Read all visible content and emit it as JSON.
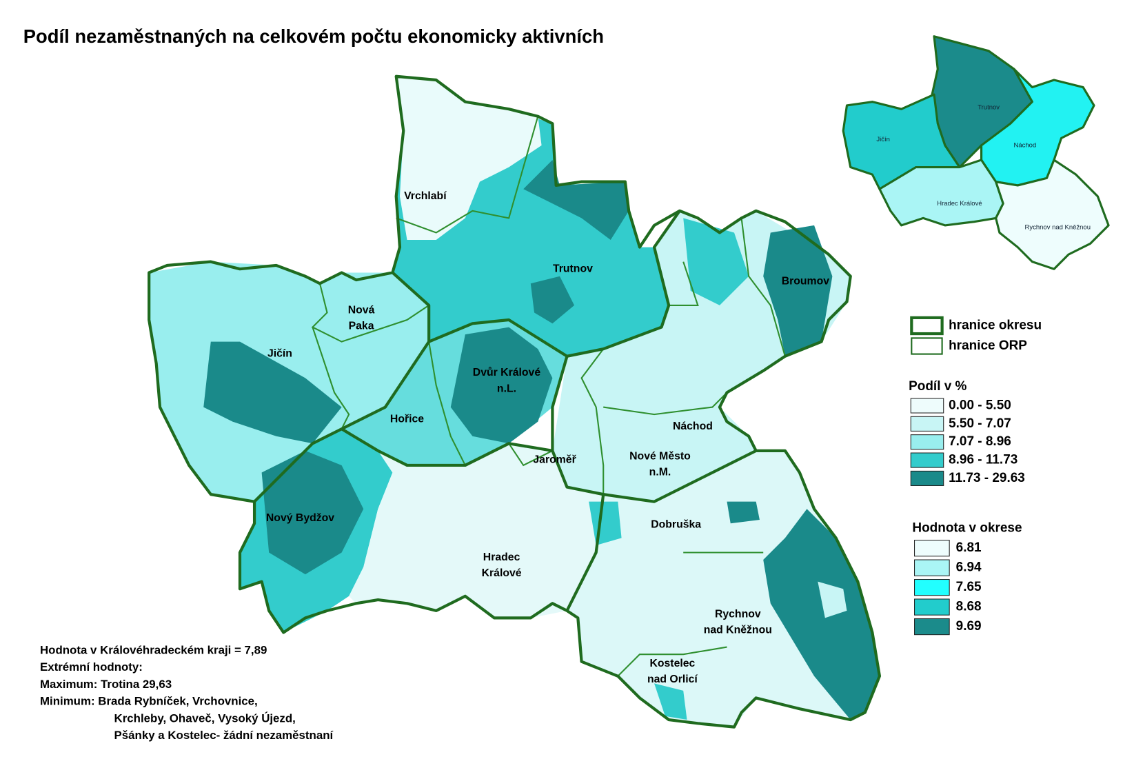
{
  "title": "Podíl nezaměstnaných na celkovém počtu ekonomicky aktivních",
  "map": {
    "labels": [
      [
        "Vrchlabí"
      ],
      [
        "Trutnov"
      ],
      [
        "Broumov"
      ],
      [
        "Nová",
        "Paka"
      ],
      [
        "Jičín"
      ],
      [
        "Dvůr Králové",
        "n.L."
      ],
      [
        "Hořice"
      ],
      [
        "Jaroměř"
      ],
      [
        "Náchod"
      ],
      [
        "Nové Město",
        "n.M."
      ],
      [
        "Nový Bydžov"
      ],
      [
        "Dobruška"
      ],
      [
        "Hradec",
        "Králové"
      ],
      [
        "Rychnov",
        "nad Kněžnou"
      ],
      [
        "Kostelec",
        "nad Orlicí"
      ]
    ]
  },
  "inset": {
    "districts": [
      {
        "label": "Trutnov",
        "color": "#1b8b8b"
      },
      {
        "label": "Náchod",
        "color": "#22f2f2"
      },
      {
        "label": "Jičín",
        "color": "#22cccc"
      },
      {
        "label": "Hradec Králové",
        "color": "#aaf5f5"
      },
      {
        "label": "Rychnov nad Kněžnou",
        "color": "#eefdfd"
      }
    ]
  },
  "legend": {
    "boundaries": [
      "hranice okresu",
      "hranice ORP"
    ],
    "share": {
      "title": "Podíl v %",
      "classes": [
        {
          "label": "0.00 -   5.50",
          "color": "#eefcfc"
        },
        {
          "label": "5.50 -   7.07",
          "color": "#c8f5f5"
        },
        {
          "label": "7.07 -   8.96",
          "color": "#99eeee"
        },
        {
          "label": "8.96 - 11.73",
          "color": "#33cccc"
        },
        {
          "label": "11.73 - 29.63",
          "color": "#1a8a8a"
        }
      ]
    },
    "district_value": {
      "title": "Hodnota v okrese",
      "values": [
        6.81,
        6.94,
        7.65,
        8.68,
        9.69
      ],
      "colors": [
        "#eefdfd",
        "#aaf5f5",
        "#22ffff",
        "#22cccc",
        "#1b8b8b"
      ]
    }
  },
  "notes": [
    "Hodnota v Královéhradeckém kraji = 7,89",
    "Extrémní hodnoty:",
    "Maximum: Trotina 29,63",
    "Minimum:  Brada Rybníček, Vrchovnice,",
    "Krchleby, Ohaveč, Vysoký Újezd,",
    "Pšánky a Kostelec- žádní  nezaměstnaní"
  ]
}
